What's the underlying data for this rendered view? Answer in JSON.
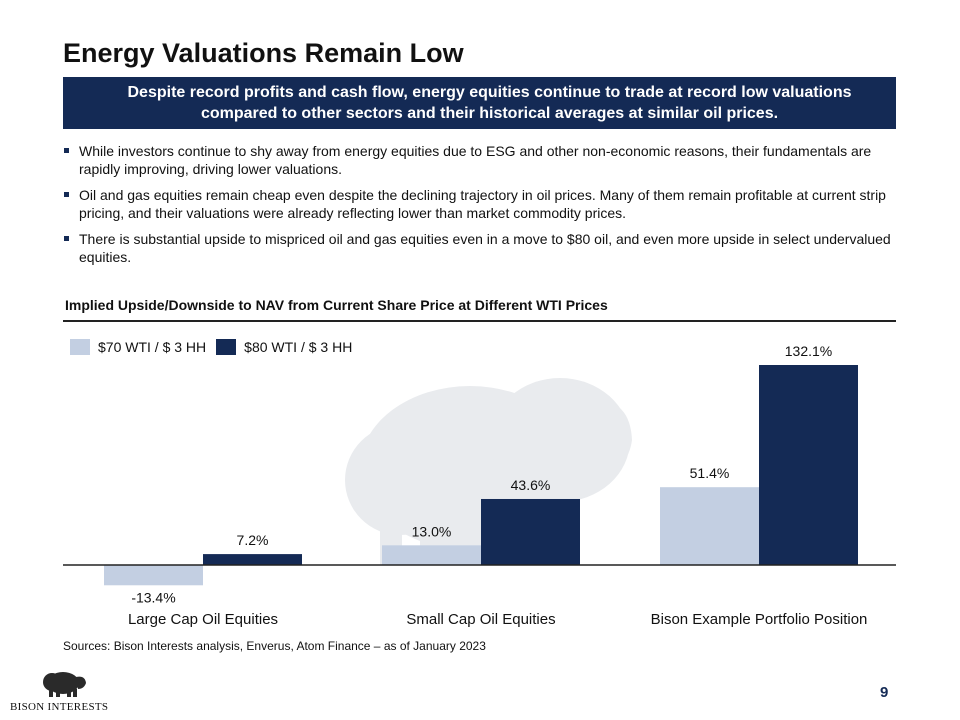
{
  "title": "Energy Valuations Remain Low",
  "banner": "Despite record profits and cash flow, energy equities continue to trade at record low valuations compared to other sectors and their historical averages at similar oil prices.",
  "bullets": [
    "While investors continue to shy away from energy equities due to ESG and other non-economic reasons, their fundamentals are rapidly improving, driving lower valuations.",
    "Oil and gas equities remain cheap even despite the declining trajectory in oil prices. Many of them remain profitable at current strip pricing, and their valuations were already reflecting lower than market commodity prices.",
    "There is substantial upside to mispriced oil and gas equities even in a move to $80 oil, and even more upside in select undervalued equities."
  ],
  "chart_data": {
    "type": "bar",
    "title": "Implied Upside/Downside to NAV from Current Share Price at Different WTI Prices",
    "categories": [
      "Large Cap Oil Equities",
      "Small Cap Oil Equities",
      "Bison Example Portfolio Position"
    ],
    "series": [
      {
        "name": "$70 WTI / $ 3 HH",
        "values": [
          -13.4,
          13.0,
          51.4
        ],
        "labels": [
          "-13.4%",
          "13.0%",
          "51.4%"
        ],
        "color": "#c3cfe2"
      },
      {
        "name": "$80 WTI / $ 3 HH",
        "values": [
          7.2,
          43.6,
          132.1
        ],
        "labels": [
          "7.2%",
          "43.6%",
          "132.1%"
        ],
        "color": "#142a55"
      }
    ],
    "legend_position": "top-left",
    "grid": false
  },
  "sources": "Sources: Bison Interests analysis, Enverus, Atom Finance – as of January 2023",
  "logo_text": "BISON INTERESTS",
  "page_number": "9"
}
